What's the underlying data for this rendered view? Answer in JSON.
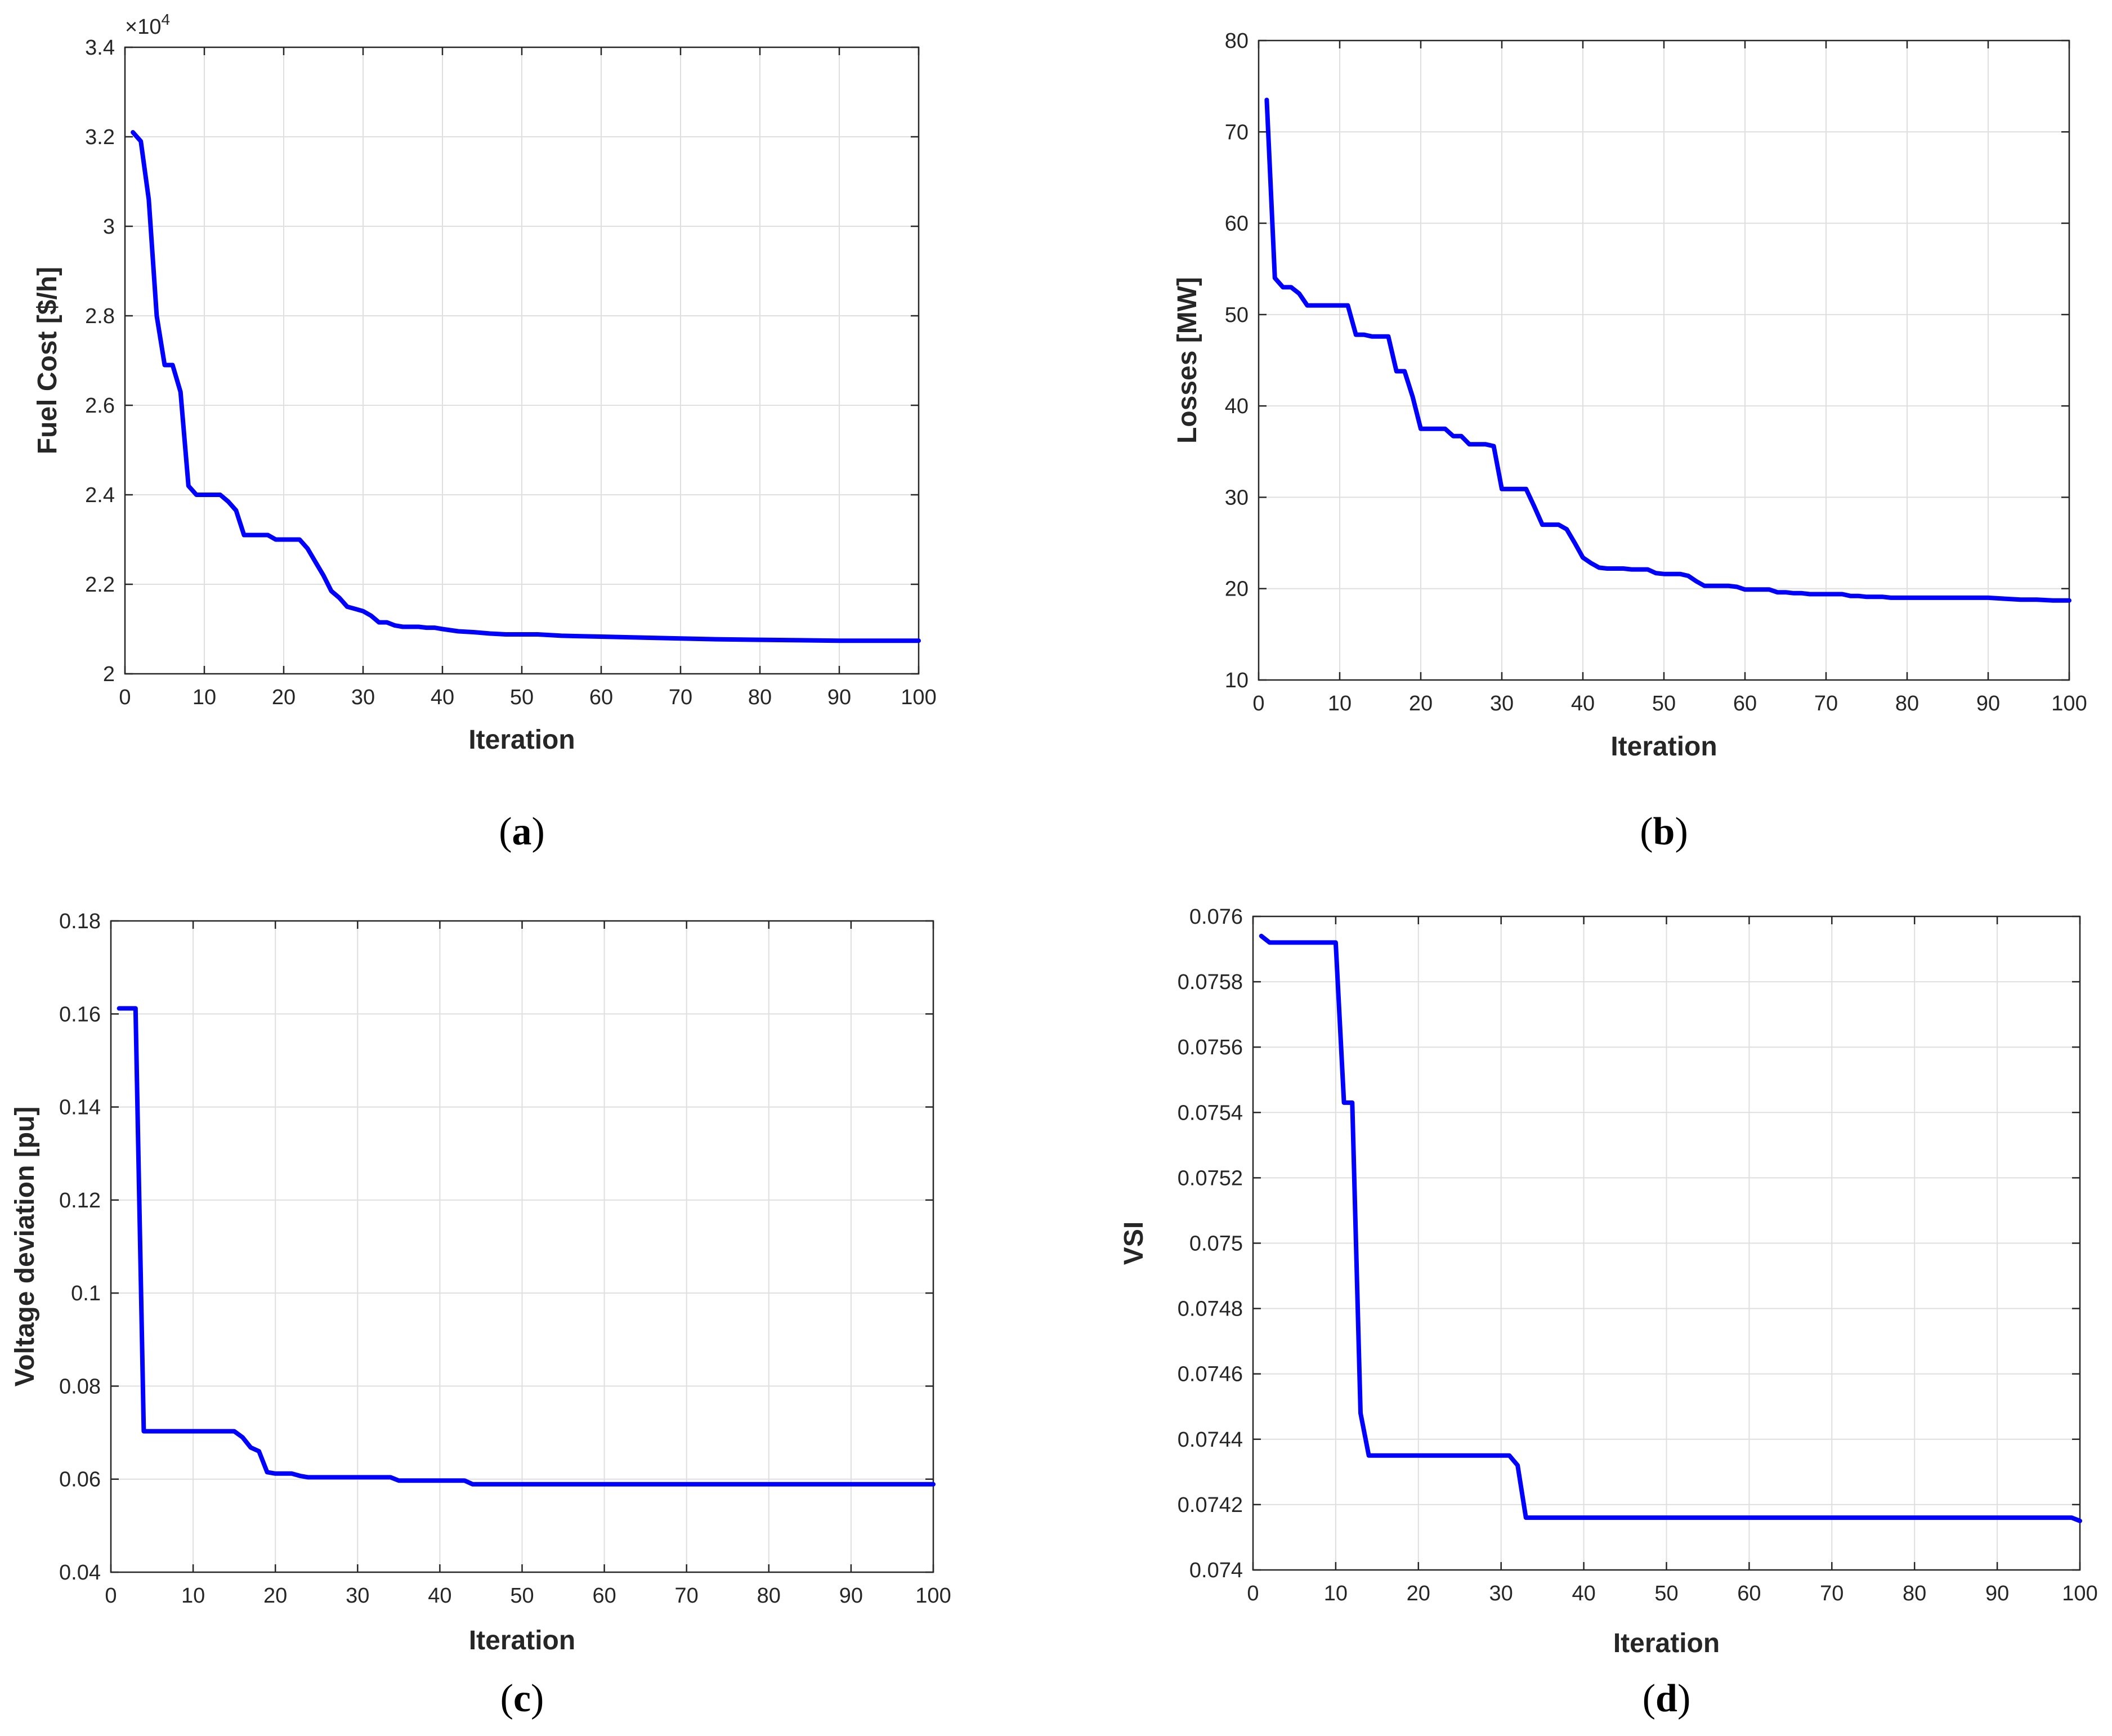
{
  "chart_data": [
    {
      "id": "a",
      "type": "line",
      "caption_letter": "a",
      "title": "",
      "xlabel": "Iteration",
      "ylabel": "Fuel Cost [$/h]",
      "exponent_label": "×10",
      "exponent_power": "4",
      "xlim": [
        0,
        100
      ],
      "ylim": [
        2.0,
        3.4
      ],
      "xticks": [
        0,
        10,
        20,
        30,
        40,
        50,
        60,
        70,
        80,
        90,
        100
      ],
      "yticks": [
        2.0,
        2.2,
        2.4,
        2.6,
        2.8,
        3.0,
        3.2,
        3.4
      ],
      "ytick_labels": [
        "2",
        "2.2",
        "2.4",
        "2.6",
        "2.8",
        "3",
        "3.2",
        "3.4"
      ],
      "grid": true,
      "line_color": "#0000FF",
      "series": [
        {
          "name": "Fuel Cost",
          "x": [
            1,
            2,
            3,
            4,
            5,
            6,
            7,
            8,
            9,
            10,
            11,
            12,
            13,
            14,
            15,
            16,
            17,
            18,
            19,
            20,
            21,
            22,
            23,
            24,
            25,
            26,
            27,
            28,
            29,
            30,
            31,
            32,
            33,
            34,
            35,
            36,
            37,
            38,
            39,
            40,
            42,
            44,
            46,
            48,
            50,
            52,
            55,
            60,
            65,
            70,
            75,
            80,
            85,
            90,
            95,
            100
          ],
          "y": [
            3.21,
            3.19,
            3.06,
            2.8,
            2.69,
            2.69,
            2.63,
            2.42,
            2.4,
            2.4,
            2.4,
            2.4,
            2.385,
            2.365,
            2.31,
            2.31,
            2.31,
            2.31,
            2.3,
            2.3,
            2.3,
            2.3,
            2.28,
            2.25,
            2.22,
            2.185,
            2.17,
            2.15,
            2.145,
            2.14,
            2.13,
            2.115,
            2.115,
            2.108,
            2.105,
            2.105,
            2.105,
            2.103,
            2.103,
            2.1,
            2.095,
            2.093,
            2.09,
            2.088,
            2.088,
            2.088,
            2.085,
            2.083,
            2.081,
            2.079,
            2.077,
            2.076,
            2.075,
            2.074,
            2.074,
            2.074
          ]
        }
      ]
    },
    {
      "id": "b",
      "type": "line",
      "caption_letter": "b",
      "title": "",
      "xlabel": "Iteration",
      "ylabel": "Losses [MW]",
      "xlim": [
        0,
        100
      ],
      "ylim": [
        10,
        80
      ],
      "xticks": [
        0,
        10,
        20,
        30,
        40,
        50,
        60,
        70,
        80,
        90,
        100
      ],
      "yticks": [
        10,
        20,
        30,
        40,
        50,
        60,
        70,
        80
      ],
      "ytick_labels": [
        "10",
        "20",
        "30",
        "40",
        "50",
        "60",
        "70",
        "80"
      ],
      "grid": true,
      "line_color": "#0000FF",
      "series": [
        {
          "name": "Losses",
          "x": [
            1,
            2,
            3,
            4,
            5,
            6,
            7,
            8,
            9,
            10,
            11,
            12,
            13,
            14,
            15,
            16,
            17,
            18,
            19,
            20,
            21,
            22,
            23,
            24,
            25,
            26,
            27,
            28,
            29,
            30,
            31,
            32,
            33,
            34,
            35,
            36,
            37,
            38,
            39,
            40,
            41,
            42,
            43,
            44,
            45,
            46,
            47,
            48,
            49,
            50,
            51,
            52,
            53,
            54,
            55,
            56,
            57,
            58,
            59,
            60,
            61,
            62,
            63,
            64,
            65,
            66,
            67,
            68,
            69,
            70,
            71,
            72,
            73,
            74,
            75,
            76,
            77,
            78,
            79,
            80,
            85,
            90,
            92,
            94,
            96,
            98,
            100
          ],
          "y": [
            73.5,
            54.0,
            53.0,
            53.0,
            52.3,
            51.0,
            51.0,
            51.0,
            51.0,
            51.0,
            51.0,
            47.8,
            47.8,
            47.6,
            47.6,
            47.6,
            43.8,
            43.8,
            41.0,
            37.5,
            37.5,
            37.5,
            37.5,
            36.7,
            36.7,
            35.8,
            35.8,
            35.8,
            35.6,
            30.9,
            30.9,
            30.9,
            30.9,
            29.0,
            27.0,
            27.0,
            27.0,
            26.5,
            25.0,
            23.4,
            22.8,
            22.3,
            22.2,
            22.2,
            22.2,
            22.1,
            22.1,
            22.1,
            21.7,
            21.6,
            21.6,
            21.6,
            21.4,
            20.8,
            20.3,
            20.3,
            20.3,
            20.3,
            20.2,
            19.9,
            19.9,
            19.9,
            19.9,
            19.6,
            19.6,
            19.5,
            19.5,
            19.4,
            19.4,
            19.4,
            19.4,
            19.4,
            19.2,
            19.2,
            19.1,
            19.1,
            19.1,
            19.0,
            19.0,
            19.0,
            19.0,
            19.0,
            18.9,
            18.8,
            18.8,
            18.7,
            18.7
          ]
        }
      ]
    },
    {
      "id": "c",
      "type": "line",
      "caption_letter": "c",
      "title": "",
      "xlabel": "Iteration",
      "ylabel": "Voltage deviation [pu]",
      "xlim": [
        0,
        100
      ],
      "ylim": [
        0.04,
        0.18
      ],
      "xticks": [
        0,
        10,
        20,
        30,
        40,
        50,
        60,
        70,
        80,
        90,
        100
      ],
      "yticks": [
        0.04,
        0.06,
        0.08,
        0.1,
        0.12,
        0.14,
        0.16,
        0.18
      ],
      "ytick_labels": [
        "0.04",
        "0.06",
        "0.08",
        "0.1",
        "0.12",
        "0.14",
        "0.16",
        "0.18"
      ],
      "grid": true,
      "line_color": "#0000FF",
      "series": [
        {
          "name": "Voltage deviation",
          "x": [
            1,
            2,
            3,
            4,
            5,
            10,
            15,
            16,
            17,
            18,
            19,
            20,
            21,
            22,
            23,
            24,
            25,
            30,
            34,
            35,
            40,
            43,
            44,
            50,
            60,
            70,
            80,
            90,
            100
          ],
          "y": [
            0.1612,
            0.1612,
            0.1612,
            0.0703,
            0.0703,
            0.0703,
            0.0703,
            0.069,
            0.0668,
            0.066,
            0.0615,
            0.0612,
            0.0612,
            0.0612,
            0.0607,
            0.0604,
            0.0604,
            0.0604,
            0.0604,
            0.0597,
            0.0597,
            0.0597,
            0.0589,
            0.0589,
            0.0589,
            0.0589,
            0.0589,
            0.0589,
            0.0589
          ]
        }
      ]
    },
    {
      "id": "d",
      "type": "line",
      "caption_letter": "d",
      "title": "",
      "xlabel": "Iteration",
      "ylabel": "VSI",
      "xlim": [
        0,
        100
      ],
      "ylim": [
        0.074,
        0.076
      ],
      "xticks": [
        0,
        10,
        20,
        30,
        40,
        50,
        60,
        70,
        80,
        90,
        100
      ],
      "yticks": [
        0.074,
        0.0742,
        0.0744,
        0.0746,
        0.0748,
        0.075,
        0.0752,
        0.0754,
        0.0756,
        0.0758,
        0.076
      ],
      "ytick_labels": [
        "0.074",
        "0.0742",
        "0.0744",
        "0.0746",
        "0.0748",
        "0.075",
        "0.0752",
        "0.0754",
        "0.0756",
        "0.0758",
        "0.076"
      ],
      "grid": true,
      "line_color": "#0000FF",
      "series": [
        {
          "name": "VSI",
          "x": [
            1,
            2,
            3,
            5,
            8,
            10,
            11,
            12,
            13,
            14,
            15,
            20,
            25,
            30,
            31,
            32,
            33,
            34,
            40,
            50,
            60,
            70,
            80,
            90,
            99,
            100
          ],
          "y": [
            0.07594,
            0.07592,
            0.07592,
            0.07592,
            0.07592,
            0.07592,
            0.07543,
            0.07543,
            0.07448,
            0.07435,
            0.07435,
            0.07435,
            0.07435,
            0.07435,
            0.07435,
            0.07432,
            0.07416,
            0.07416,
            0.07416,
            0.07416,
            0.07416,
            0.07416,
            0.07416,
            0.07416,
            0.07416,
            0.07415
          ]
        }
      ]
    }
  ]
}
